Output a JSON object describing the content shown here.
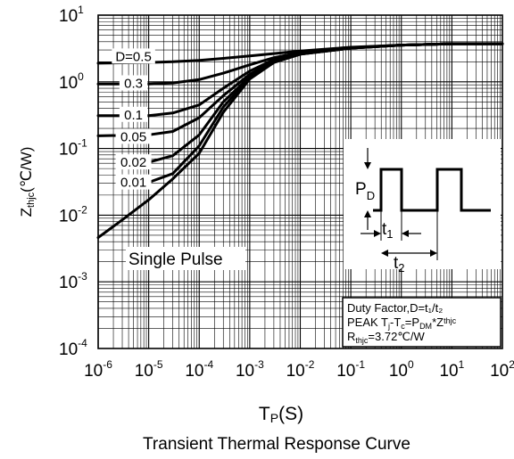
{
  "chart_data": {
    "type": "line",
    "title": "Transient Thermal Response Curve",
    "xlabel": {
      "main": "T",
      "sub": "P",
      "unit": "(S)"
    },
    "ylabel": {
      "main": "Z",
      "sub": "thjc",
      "unit": "(℃/W)"
    },
    "x_scale": "log",
    "y_scale": "log",
    "xlim": [
      1e-06,
      100
    ],
    "ylim": [
      0.0001,
      10
    ],
    "grid": true,
    "x_ticks": [
      {
        "base": "10",
        "exp": "-6",
        "value": 1e-06
      },
      {
        "base": "10",
        "exp": "-5",
        "value": 1e-05
      },
      {
        "base": "10",
        "exp": "-4",
        "value": 0.0001
      },
      {
        "base": "10",
        "exp": "-3",
        "value": 0.001
      },
      {
        "base": "10",
        "exp": "-2",
        "value": 0.01
      },
      {
        "base": "10",
        "exp": "-1",
        "value": 0.1
      },
      {
        "base": "10",
        "exp": "0",
        "value": 1
      },
      {
        "base": "10",
        "exp": "1",
        "value": 10
      },
      {
        "base": "10",
        "exp": "2",
        "value": 100
      }
    ],
    "y_ticks": [
      {
        "base": "10",
        "exp": "1",
        "value": 10
      },
      {
        "base": "10",
        "exp": "0",
        "value": 1
      },
      {
        "base": "10",
        "exp": "-1",
        "value": 0.1
      },
      {
        "base": "10",
        "exp": "-2",
        "value": 0.01
      },
      {
        "base": "10",
        "exp": "-3",
        "value": 0.001
      },
      {
        "base": "10",
        "exp": "-4",
        "value": 0.0001
      }
    ],
    "series": [
      {
        "name": "D=0.5",
        "label_at": [
          5e-06,
          2.4
        ],
        "points": [
          [
            1e-06,
            1.9
          ],
          [
            1e-05,
            1.95
          ],
          [
            3e-05,
            2.0
          ],
          [
            0.0001,
            2.1
          ],
          [
            0.0003,
            2.25
          ],
          [
            0.001,
            2.45
          ],
          [
            0.003,
            2.65
          ],
          [
            0.01,
            2.9
          ],
          [
            0.1,
            3.3
          ],
          [
            1,
            3.55
          ],
          [
            10,
            3.72
          ],
          [
            100,
            3.72
          ]
        ]
      },
      {
        "name": "0.3",
        "label_at": [
          5e-06,
          0.95
        ],
        "points": [
          [
            1e-06,
            0.93
          ],
          [
            1e-05,
            0.93
          ],
          [
            3e-05,
            0.96
          ],
          [
            0.0001,
            1.08
          ],
          [
            0.0003,
            1.35
          ],
          [
            0.001,
            1.8
          ],
          [
            0.003,
            2.3
          ],
          [
            0.01,
            2.75
          ],
          [
            0.1,
            3.25
          ],
          [
            1,
            3.55
          ],
          [
            10,
            3.72
          ],
          [
            100,
            3.72
          ]
        ]
      },
      {
        "name": "0.1",
        "label_at": [
          5e-06,
          0.32
        ],
        "points": [
          [
            1e-06,
            0.31
          ],
          [
            1e-05,
            0.31
          ],
          [
            3e-05,
            0.34
          ],
          [
            0.0001,
            0.45
          ],
          [
            0.0003,
            0.8
          ],
          [
            0.001,
            1.45
          ],
          [
            0.003,
            2.15
          ],
          [
            0.01,
            2.7
          ],
          [
            0.1,
            3.25
          ],
          [
            1,
            3.55
          ],
          [
            10,
            3.72
          ],
          [
            100,
            3.72
          ]
        ]
      },
      {
        "name": "0.05",
        "label_at": [
          5e-06,
          0.15
        ],
        "points": [
          [
            1e-06,
            0.155
          ],
          [
            1e-05,
            0.16
          ],
          [
            3e-05,
            0.18
          ],
          [
            0.0001,
            0.29
          ],
          [
            0.0003,
            0.62
          ],
          [
            0.001,
            1.3
          ],
          [
            0.003,
            2.05
          ],
          [
            0.01,
            2.65
          ],
          [
            0.1,
            3.2
          ],
          [
            1,
            3.55
          ],
          [
            10,
            3.72
          ],
          [
            100,
            3.72
          ]
        ]
      },
      {
        "name": "0.02",
        "label_at": [
          5e-06,
          0.062
        ],
        "points": [
          [
            1e-05,
            0.062
          ],
          [
            3e-05,
            0.078
          ],
          [
            0.0001,
            0.16
          ],
          [
            0.0003,
            0.5
          ],
          [
            0.001,
            1.2
          ],
          [
            0.003,
            2.0
          ],
          [
            0.01,
            2.6
          ],
          [
            0.1,
            3.2
          ],
          [
            1,
            3.55
          ],
          [
            10,
            3.72
          ],
          [
            100,
            3.72
          ]
        ]
      },
      {
        "name": "0.01",
        "label_at": [
          5e-06,
          0.031
        ],
        "points": [
          [
            1e-05,
            0.031
          ],
          [
            3e-05,
            0.042
          ],
          [
            0.0001,
            0.11
          ],
          [
            0.0003,
            0.42
          ],
          [
            0.001,
            1.15
          ],
          [
            0.003,
            1.95
          ],
          [
            0.01,
            2.6
          ],
          [
            0.1,
            3.2
          ],
          [
            1,
            3.55
          ],
          [
            10,
            3.72
          ],
          [
            100,
            3.72
          ]
        ]
      },
      {
        "name": "Single Pulse",
        "points": [
          [
            1e-06,
            0.0046
          ],
          [
            3e-06,
            0.0085
          ],
          [
            1e-05,
            0.017
          ],
          [
            3e-05,
            0.035
          ],
          [
            0.0001,
            0.085
          ],
          [
            0.0003,
            0.35
          ],
          [
            0.001,
            1.1
          ],
          [
            0.003,
            1.95
          ],
          [
            0.01,
            2.6
          ],
          [
            0.1,
            3.2
          ],
          [
            1,
            3.55
          ],
          [
            10,
            3.72
          ],
          [
            100,
            3.72
          ]
        ]
      }
    ],
    "annotations": {
      "single_pulse": "Single Pulse",
      "duty_box": {
        "line1": "Duty Factor,D=t₁/t₂",
        "line2": {
          "a": "PEAK T",
          "a_sub": "j",
          "b": "-T",
          "b_sub": "c",
          "c": "=P",
          "c_sub": "DM",
          "d": "*Z",
          "d_sub": "thjc"
        },
        "line3": {
          "a": "R",
          "a_sub": "thjc",
          "b": "=3.72℃/W"
        }
      },
      "inset": {
        "pd": "P",
        "pd_sub": "D",
        "t1": "t",
        "t1_sub": "1",
        "t2": "t",
        "t2_sub": "2"
      }
    }
  }
}
